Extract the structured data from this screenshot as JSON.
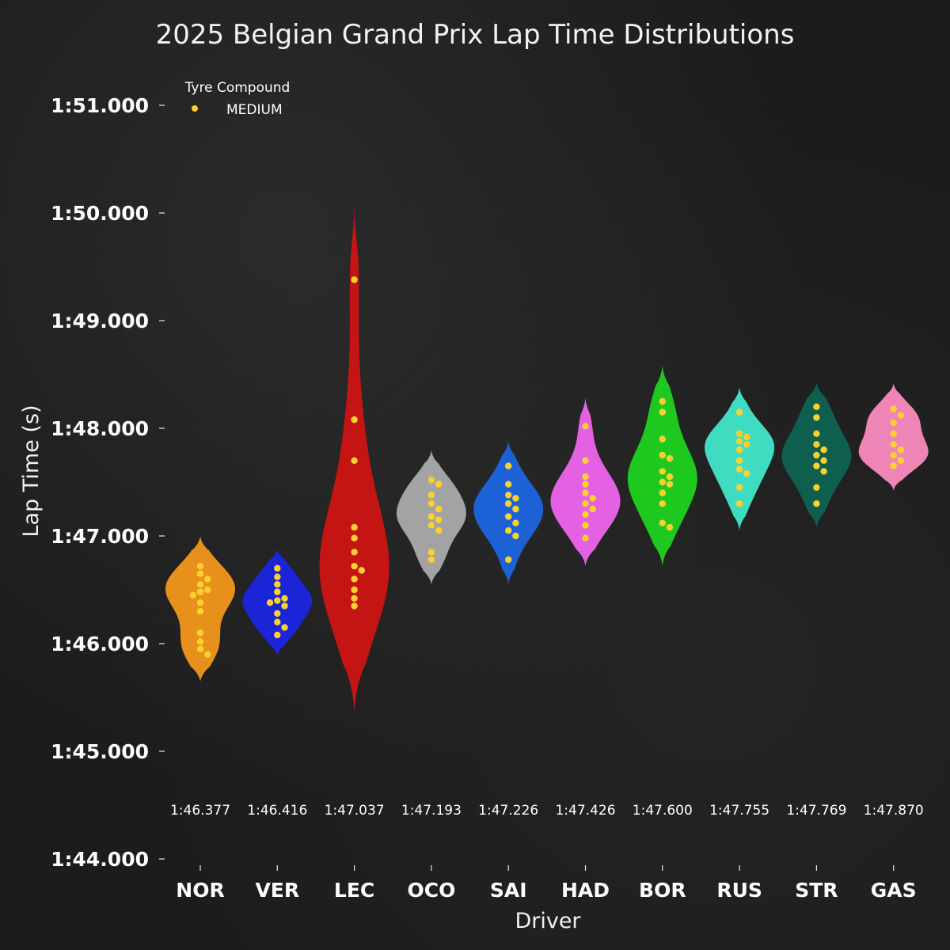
{
  "chart_data": {
    "type": "violin",
    "title": "2025 Belgian Grand Prix Lap Time Distributions",
    "xlabel": "Driver",
    "ylabel": "Lap Time (s)",
    "ylim": [
      104,
      111
    ],
    "yticks": [
      {
        "value": 104,
        "label": "1:44.000"
      },
      {
        "value": 105,
        "label": "1:45.000"
      },
      {
        "value": 106,
        "label": "1:46.000"
      },
      {
        "value": 107,
        "label": "1:47.000"
      },
      {
        "value": 108,
        "label": "1:48.000"
      },
      {
        "value": 109,
        "label": "1:49.000"
      },
      {
        "value": 110,
        "label": "1:50.000"
      },
      {
        "value": 111,
        "label": "1:51.000"
      }
    ],
    "legend": {
      "title": "Tyre Compound",
      "placement": "top-left",
      "entries": [
        {
          "label": "MEDIUM",
          "color": "#ffd12e"
        }
      ]
    },
    "point_color": "#ffd12e",
    "series": [
      {
        "driver": "NOR",
        "color": "#e8901c",
        "median_label": "1:46.377",
        "violin_range": [
          105.65,
          107.0
        ],
        "laps": [
          106.72,
          106.65,
          106.6,
          106.55,
          106.5,
          106.48,
          106.45,
          106.38,
          106.3,
          106.1,
          106.02,
          105.95,
          105.9
        ]
      },
      {
        "driver": "VER",
        "color": "#1c24d8",
        "median_label": "1:46.416",
        "violin_range": [
          105.88,
          106.88
        ],
        "laps": [
          106.7,
          106.62,
          106.55,
          106.48,
          106.42,
          106.4,
          106.38,
          106.35,
          106.28,
          106.2,
          106.15,
          106.08
        ]
      },
      {
        "driver": "LEC",
        "color": "#c41414",
        "median_label": "1:47.037",
        "violin_range": [
          105.35,
          110.05
        ],
        "laps": [
          109.38,
          108.08,
          107.7,
          107.08,
          106.98,
          106.85,
          106.72,
          106.68,
          106.6,
          106.5,
          106.42,
          106.35
        ]
      },
      {
        "driver": "OCO",
        "color": "#a3a3a3",
        "median_label": "1:47.193",
        "violin_range": [
          106.55,
          107.8
        ],
        "laps": [
          107.52,
          107.48,
          107.38,
          107.3,
          107.25,
          107.18,
          107.15,
          107.1,
          107.05,
          106.85,
          106.78
        ]
      },
      {
        "driver": "SAI",
        "color": "#1c62d6",
        "median_label": "1:47.226",
        "violin_range": [
          106.55,
          107.88
        ],
        "laps": [
          107.65,
          107.48,
          107.38,
          107.35,
          107.3,
          107.25,
          107.18,
          107.12,
          107.05,
          107.0,
          106.78
        ]
      },
      {
        "driver": "HAD",
        "color": "#e561e3",
        "median_label": "1:47.426",
        "violin_range": [
          106.72,
          108.28
        ],
        "laps": [
          108.02,
          107.7,
          107.55,
          107.48,
          107.4,
          107.35,
          107.3,
          107.25,
          107.2,
          107.1,
          106.98
        ]
      },
      {
        "driver": "BOR",
        "color": "#1ec81e",
        "median_label": "1:47.600",
        "violin_range": [
          106.72,
          108.58
        ],
        "laps": [
          108.25,
          108.15,
          107.9,
          107.75,
          107.72,
          107.6,
          107.55,
          107.5,
          107.48,
          107.4,
          107.3,
          107.12,
          107.08
        ]
      },
      {
        "driver": "RUS",
        "color": "#3fdcc2",
        "median_label": "1:47.755",
        "violin_range": [
          107.05,
          108.38
        ],
        "laps": [
          108.15,
          107.95,
          107.92,
          107.88,
          107.85,
          107.8,
          107.7,
          107.62,
          107.58,
          107.45,
          107.3
        ]
      },
      {
        "driver": "STR",
        "color": "#0f5f4e",
        "median_label": "1:47.769",
        "violin_range": [
          107.08,
          108.42
        ],
        "laps": [
          108.2,
          108.1,
          107.95,
          107.85,
          107.8,
          107.75,
          107.7,
          107.65,
          107.6,
          107.45,
          107.3
        ]
      },
      {
        "driver": "GAS",
        "color": "#ef84b6",
        "median_label": "1:47.870",
        "violin_range": [
          107.42,
          108.42
        ],
        "laps": [
          108.18,
          108.12,
          108.05,
          107.95,
          107.85,
          107.8,
          107.75,
          107.7,
          107.65
        ]
      }
    ]
  }
}
